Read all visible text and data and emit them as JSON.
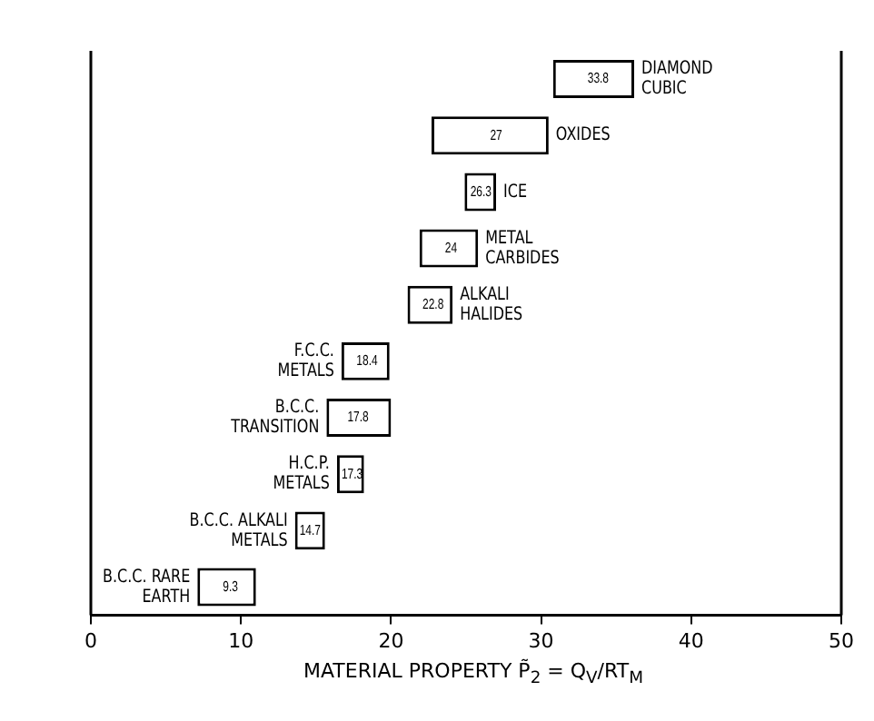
{
  "chart_data": {
    "type": "bar",
    "orientation": "horizontal",
    "xlabel": "MATERIAL PROPERTY P̃$_{2}$ = Q$_{V}$/RT$_{M}$",
    "categories": [
      "DIAMOND CUBIC",
      "OXIDES",
      "ICE",
      "METAL CARBIDES",
      "ALKALI HALIDES",
      "F.C.C. METALS",
      "B.C.C. TRANSITION",
      "H.C.P. METALS",
      "B.C.C. ALKALI METALS",
      "B.C.C. RARE EARTH"
    ],
    "base": [
      30.8,
      22.7,
      24.9,
      21.9,
      21.1,
      16.7,
      15.7,
      16.4,
      13.6,
      7.1
    ],
    "values": [
      5.4,
      7.8,
      2.1,
      3.9,
      3.0,
      3.2,
      4.3,
      1.8,
      2.0,
      3.9
    ],
    "annotations": [
      {
        "text": "33.8",
        "x": 33.8,
        "y": "DIAMOND CUBIC"
      },
      {
        "text": "27",
        "x": 27,
        "y": "OXIDES"
      },
      {
        "text": "26.3",
        "x": 26.3,
        "y": "ICE"
      },
      {
        "text": "24",
        "x": 24,
        "y": "METAL CARBIDES"
      },
      {
        "text": "22.8",
        "x": 22.8,
        "y": "ALKALI HALIDES"
      },
      {
        "text": "18.4",
        "x": 18.4,
        "y": "F.C.C. METALS"
      },
      {
        "text": "17.8",
        "x": 17.8,
        "y": "B.C.C. TRANSITION"
      },
      {
        "text": "17.3",
        "x": 17.3,
        "y": "H.C.P. METALS"
      },
      {
        "text": "14.7",
        "x": 14.7,
        "y": "B.C.C. ALKALI METALS"
      },
      {
        "text": "9.3",
        "x": 9.3,
        "y": "B.C.C. RARE EARTH"
      }
    ],
    "color": "#ffffff",
    "xlim": [
      0,
      50
    ],
    "xticks": [
      0,
      10,
      20,
      30,
      40,
      50
    ],
    "tick_labels": "x",
    "grid": false,
    "legend": false
  }
}
